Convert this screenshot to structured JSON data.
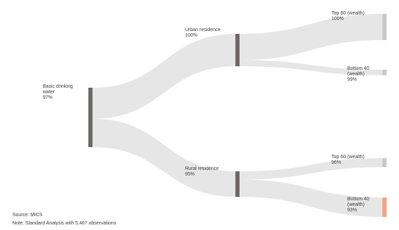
{
  "nodes": {
    "root": {
      "label": "Basic drinking water",
      "value": "97%"
    },
    "urban": {
      "label": "Urban residence",
      "value": "100%"
    },
    "rural": {
      "label": "Rural residence",
      "value": "95%"
    },
    "urban_top": {
      "label": "Top 60 (wealth)",
      "value": "100%"
    },
    "urban_bottom": {
      "label": "Bottom 40 (wealth)",
      "value": "99%"
    },
    "rural_top": {
      "label": "Top 60 (wealth)",
      "value": "96%"
    },
    "rural_bottom": {
      "label": "Bottom 40 (wealth)",
      "value": "93%"
    }
  },
  "colors": {
    "link": "#e6e6e6",
    "node_dark": "#6b6867",
    "node_light": "#c8c8c8",
    "node_highlight": "#f2a27e"
  },
  "footer": {
    "source": "Source: MICS",
    "note": "Note: Standard Analysis with 5,467 observations"
  }
}
